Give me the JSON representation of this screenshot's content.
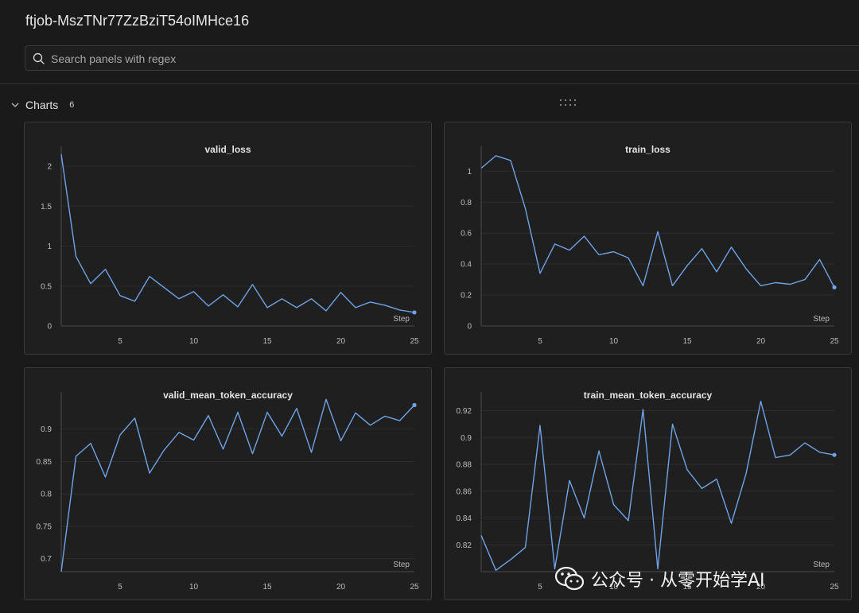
{
  "header": {
    "title": "ftjob-MszTNr77ZzBziT54oIMHce16"
  },
  "search": {
    "placeholder": "Search panels with regex"
  },
  "section": {
    "label": "Charts",
    "count": "6"
  },
  "colors": {
    "line": "#6ea3e6",
    "grid": "#2c2c2e",
    "axis": "#4a4a4c"
  },
  "watermark": {
    "text": "公众号 · 从零开始学AI"
  },
  "chart_data": [
    {
      "type": "line",
      "title": "valid_loss",
      "xlabel": "Step",
      "xlim": [
        1,
        25
      ],
      "ylim": [
        0,
        2.15
      ],
      "xticks": [
        5,
        10,
        15,
        20,
        25
      ],
      "yticks": [
        0,
        0.5,
        1,
        1.5,
        2
      ],
      "ytick_labels": [
        "0",
        "0.5",
        "1",
        "1.5",
        "2"
      ],
      "x": [
        1,
        2,
        3,
        4,
        5,
        6,
        7,
        8,
        9,
        10,
        11,
        12,
        13,
        14,
        15,
        16,
        17,
        18,
        19,
        20,
        21,
        22,
        23,
        24,
        25
      ],
      "values": [
        2.15,
        0.87,
        0.53,
        0.71,
        0.38,
        0.31,
        0.62,
        0.48,
        0.34,
        0.43,
        0.25,
        0.39,
        0.24,
        0.52,
        0.23,
        0.34,
        0.23,
        0.34,
        0.19,
        0.42,
        0.23,
        0.3,
        0.26,
        0.2,
        0.17
      ]
    },
    {
      "type": "line",
      "title": "train_loss",
      "xlabel": "Step",
      "xlim": [
        1,
        25
      ],
      "ylim": [
        0,
        1.11
      ],
      "xticks": [
        5,
        10,
        15,
        20,
        25
      ],
      "yticks": [
        0,
        0.2,
        0.4,
        0.6,
        0.8,
        1
      ],
      "ytick_labels": [
        "0",
        "0.2",
        "0.4",
        "0.6",
        "0.8",
        "1"
      ],
      "x": [
        1,
        2,
        3,
        4,
        5,
        6,
        7,
        8,
        9,
        10,
        11,
        12,
        13,
        14,
        15,
        16,
        17,
        18,
        19,
        20,
        21,
        22,
        23,
        24,
        25
      ],
      "values": [
        1.02,
        1.1,
        1.07,
        0.76,
        0.34,
        0.53,
        0.49,
        0.58,
        0.46,
        0.48,
        0.44,
        0.26,
        0.61,
        0.26,
        0.39,
        0.5,
        0.35,
        0.51,
        0.37,
        0.26,
        0.28,
        0.27,
        0.3,
        0.43,
        0.25
      ]
    },
    {
      "type": "line",
      "title": "valid_mean_token_accuracy",
      "xlabel": "Step",
      "xlim": [
        1,
        25
      ],
      "ylim": [
        0.68,
        0.945
      ],
      "xticks": [
        5,
        10,
        15,
        20,
        25
      ],
      "yticks": [
        0.7,
        0.75,
        0.8,
        0.85,
        0.9
      ],
      "ytick_labels": [
        "0.7",
        "0.75",
        "0.8",
        "0.85",
        "0.9"
      ],
      "x": [
        1,
        2,
        3,
        4,
        5,
        6,
        7,
        8,
        9,
        10,
        11,
        12,
        13,
        14,
        15,
        16,
        17,
        18,
        19,
        20,
        21,
        22,
        23,
        24,
        25
      ],
      "values": [
        0.68,
        0.858,
        0.878,
        0.826,
        0.891,
        0.917,
        0.832,
        0.868,
        0.895,
        0.883,
        0.921,
        0.869,
        0.926,
        0.862,
        0.926,
        0.889,
        0.932,
        0.864,
        0.946,
        0.882,
        0.925,
        0.906,
        0.92,
        0.913,
        0.937
      ]
    },
    {
      "type": "line",
      "title": "train_mean_token_accuracy",
      "xlabel": "Step",
      "xlim": [
        1,
        25
      ],
      "ylim": [
        0.8,
        0.928
      ],
      "xticks": [
        5,
        10,
        15,
        20,
        25
      ],
      "yticks": [
        0.82,
        0.84,
        0.86,
        0.88,
        0.9,
        0.92
      ],
      "ytick_labels": [
        "0.82",
        "0.84",
        "0.86",
        "0.88",
        "0.9",
        "0.92"
      ],
      "x": [
        1,
        2,
        3,
        4,
        5,
        6,
        7,
        8,
        9,
        10,
        11,
        12,
        13,
        14,
        15,
        16,
        17,
        18,
        19,
        20,
        21,
        22,
        23,
        24,
        25
      ],
      "values": [
        0.827,
        0.801,
        0.809,
        0.818,
        0.909,
        0.802,
        0.868,
        0.84,
        0.89,
        0.85,
        0.838,
        0.921,
        0.802,
        0.91,
        0.876,
        0.862,
        0.869,
        0.836,
        0.873,
        0.927,
        0.885,
        0.887,
        0.896,
        0.889,
        0.887
      ]
    }
  ]
}
